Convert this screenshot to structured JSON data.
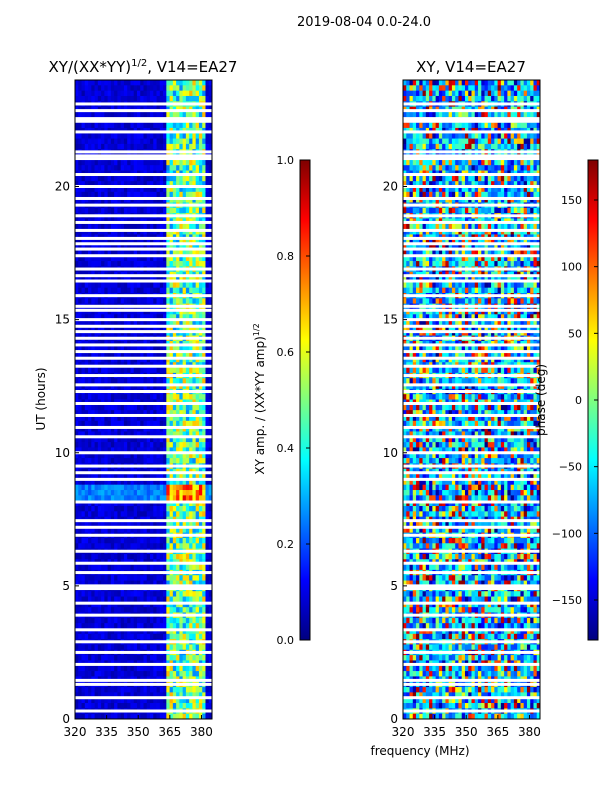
{
  "figure": {
    "suptitle": "2019-08-04 0.0-24.0",
    "xlabel": "frequency (MHz)"
  },
  "colors": {
    "jet": [
      "#00007f",
      "#0000ff",
      "#007fff",
      "#00ffff",
      "#7fff7f",
      "#ffff00",
      "#ff7f00",
      "#ff0000",
      "#7f0000"
    ],
    "blank_rows": "#ffffff"
  },
  "chart_data": [
    {
      "type": "heatmap",
      "title_text": "XY/(XX*YY)",
      "title_sup": "1/2",
      "title_suffix": ", V14=EA27",
      "ylabel": "UT (hours)",
      "xlim": [
        320,
        385
      ],
      "ylim": [
        0,
        24
      ],
      "xticks": [
        320,
        335,
        350,
        365,
        380
      ],
      "yticks": [
        0,
        5,
        10,
        15,
        20
      ],
      "value_description": "normalized XY amplitude; background mostly 0.0-0.15, RFI-affected channels 365-382 MHz reach 0.4-0.9",
      "bright_band_mhz": [
        363,
        382
      ],
      "colorbar": {
        "label_text": "XY amp. / (XX*YY amp)",
        "label_sup": "1/2",
        "range": [
          0.0,
          1.0
        ],
        "ticks": [
          "0.0",
          "0.2",
          "0.4",
          "0.6",
          "0.8",
          "1.0"
        ]
      }
    },
    {
      "type": "heatmap",
      "title": "XY, V14=EA27",
      "ylabel": "",
      "xlim": [
        320,
        385
      ],
      "ylim": [
        0,
        24
      ],
      "xticks": [
        320,
        335,
        350,
        365,
        380
      ],
      "yticks": [
        0,
        5,
        10,
        15,
        20
      ],
      "value_description": "XY phase in degrees, noisy with mixed values from -180 to 180",
      "colorbar": {
        "label": "phase (deg)",
        "range": [
          -180,
          180
        ],
        "ticks": [
          "150",
          "100",
          "50",
          "0",
          "−50",
          "−100",
          "−150"
        ]
      }
    }
  ],
  "blank_time_rows_ut": [
    0.3,
    0.8,
    1.3,
    1.45,
    2.05,
    2.5,
    2.9,
    3.35,
    3.9,
    4.35,
    4.9,
    5.0,
    5.5,
    5.85,
    6.3,
    6.9,
    7.2,
    7.45,
    8.15,
    9.0,
    9.25,
    9.5,
    10.0,
    10.6,
    10.95,
    11.4,
    11.85,
    12.3,
    12.55,
    12.9,
    13.25,
    13.55,
    13.8,
    14.05,
    14.3,
    14.55,
    14.75,
    15.0,
    15.35,
    15.5,
    15.9,
    16.45,
    16.65,
    16.9,
    17.4,
    17.65,
    17.85,
    18.05,
    18.35,
    18.65,
    18.9,
    19.3,
    19.55,
    20.0,
    20.45,
    21.05,
    21.15,
    21.3,
    22.05,
    22.45,
    22.55,
    22.85,
    23.1
  ]
}
